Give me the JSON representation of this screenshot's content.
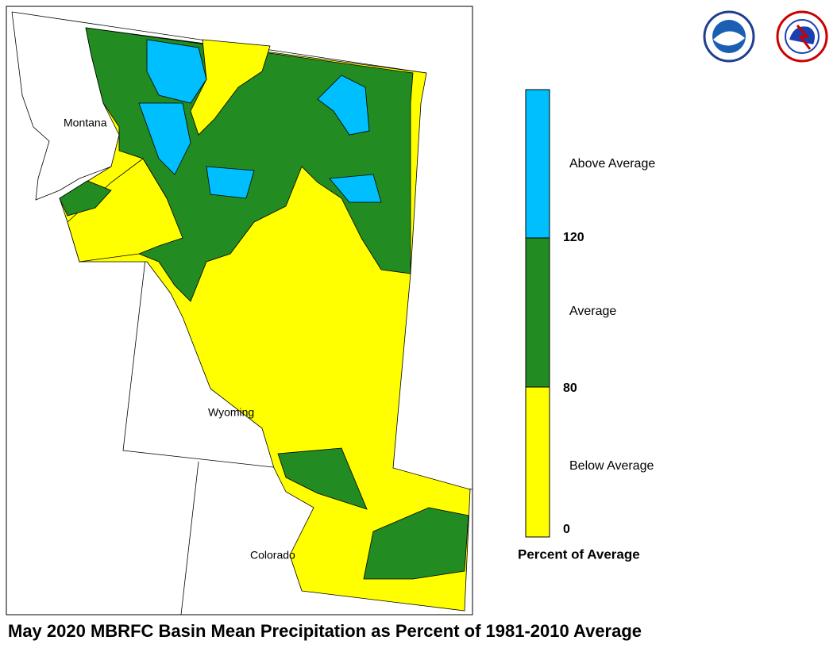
{
  "title": "May 2020 MBRFC Basin Mean Precipitation as Percent of 1981-2010 Average",
  "map": {
    "labels": [
      "Montana",
      "Wyoming",
      "Colorado"
    ]
  },
  "legend": {
    "title": "Percent of Average",
    "classes": [
      {
        "label": "Above Average",
        "color": "#00bfff"
      },
      {
        "label": "Average",
        "color": "#228b22"
      },
      {
        "label": "Below Average",
        "color": "#ffff00"
      }
    ],
    "breaks": [
      0,
      80,
      120
    ]
  }
}
